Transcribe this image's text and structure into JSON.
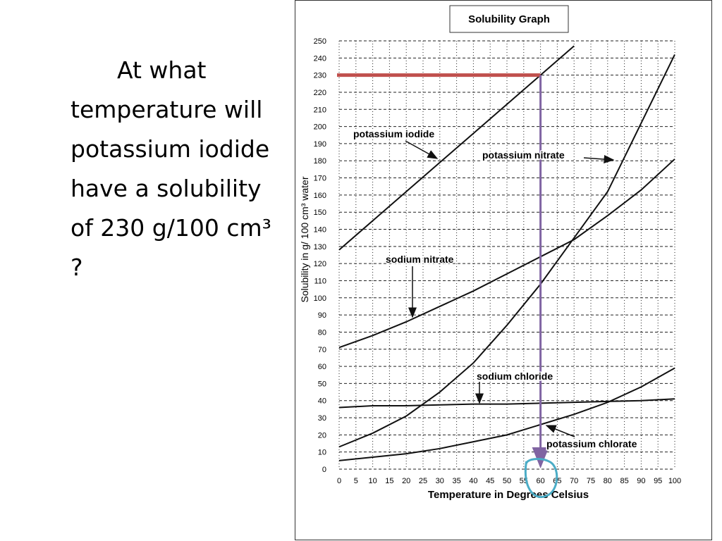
{
  "question": "At what temperature will potassium iodide have a solubility of 230 g/100 cm³ ?",
  "chart_data": {
    "type": "line",
    "title": "Solubility Graph",
    "x_label": "Temperature in Degrees Celsius",
    "y_label": "Solubility in g/ 100 cm³ water",
    "xlim": [
      0,
      100
    ],
    "ylim": [
      0,
      250
    ],
    "xticks": [
      0,
      5,
      10,
      15,
      20,
      25,
      30,
      35,
      40,
      45,
      50,
      55,
      60,
      65,
      70,
      75,
      80,
      85,
      90,
      95,
      100
    ],
    "yticks": [
      0,
      10,
      20,
      30,
      40,
      50,
      60,
      70,
      80,
      90,
      100,
      110,
      120,
      130,
      140,
      150,
      160,
      170,
      180,
      190,
      200,
      210,
      220,
      230,
      240,
      250
    ],
    "grid": true,
    "series": [
      {
        "name": "potassium iodide",
        "color": "#111111",
        "x": [
          0,
          10,
          20,
          30,
          40,
          50,
          60,
          70
        ],
        "values": [
          128,
          145,
          162,
          179,
          196,
          213,
          230,
          247
        ]
      },
      {
        "name": "potassium nitrate",
        "color": "#111111",
        "x": [
          0,
          10,
          20,
          30,
          40,
          50,
          60,
          70,
          80,
          90,
          100
        ],
        "values": [
          13,
          21,
          31,
          45,
          62,
          84,
          108,
          135,
          162,
          202,
          242
        ]
      },
      {
        "name": "sodium nitrate",
        "color": "#111111",
        "x": [
          0,
          10,
          20,
          30,
          40,
          50,
          60,
          70,
          80,
          90,
          100
        ],
        "values": [
          71,
          78,
          86,
          95,
          104,
          114,
          124,
          134,
          148,
          163,
          181
        ]
      },
      {
        "name": "sodium chloride",
        "color": "#111111",
        "x": [
          0,
          10,
          20,
          30,
          40,
          50,
          60,
          70,
          80,
          90,
          100
        ],
        "values": [
          36,
          37,
          37,
          37.5,
          38,
          38,
          38.5,
          39,
          39.5,
          40,
          41
        ]
      },
      {
        "name": "potassium chlorate",
        "color": "#111111",
        "x": [
          0,
          10,
          20,
          30,
          40,
          50,
          60,
          70,
          80,
          90,
          100
        ],
        "values": [
          5,
          7,
          9,
          12,
          16,
          20,
          26,
          32,
          39,
          48,
          59
        ]
      }
    ],
    "guide": {
      "y": 230,
      "x": 60,
      "h_color": "#c0504d",
      "v_color": "#8064a2",
      "circle_color": "#4bacc6"
    }
  }
}
